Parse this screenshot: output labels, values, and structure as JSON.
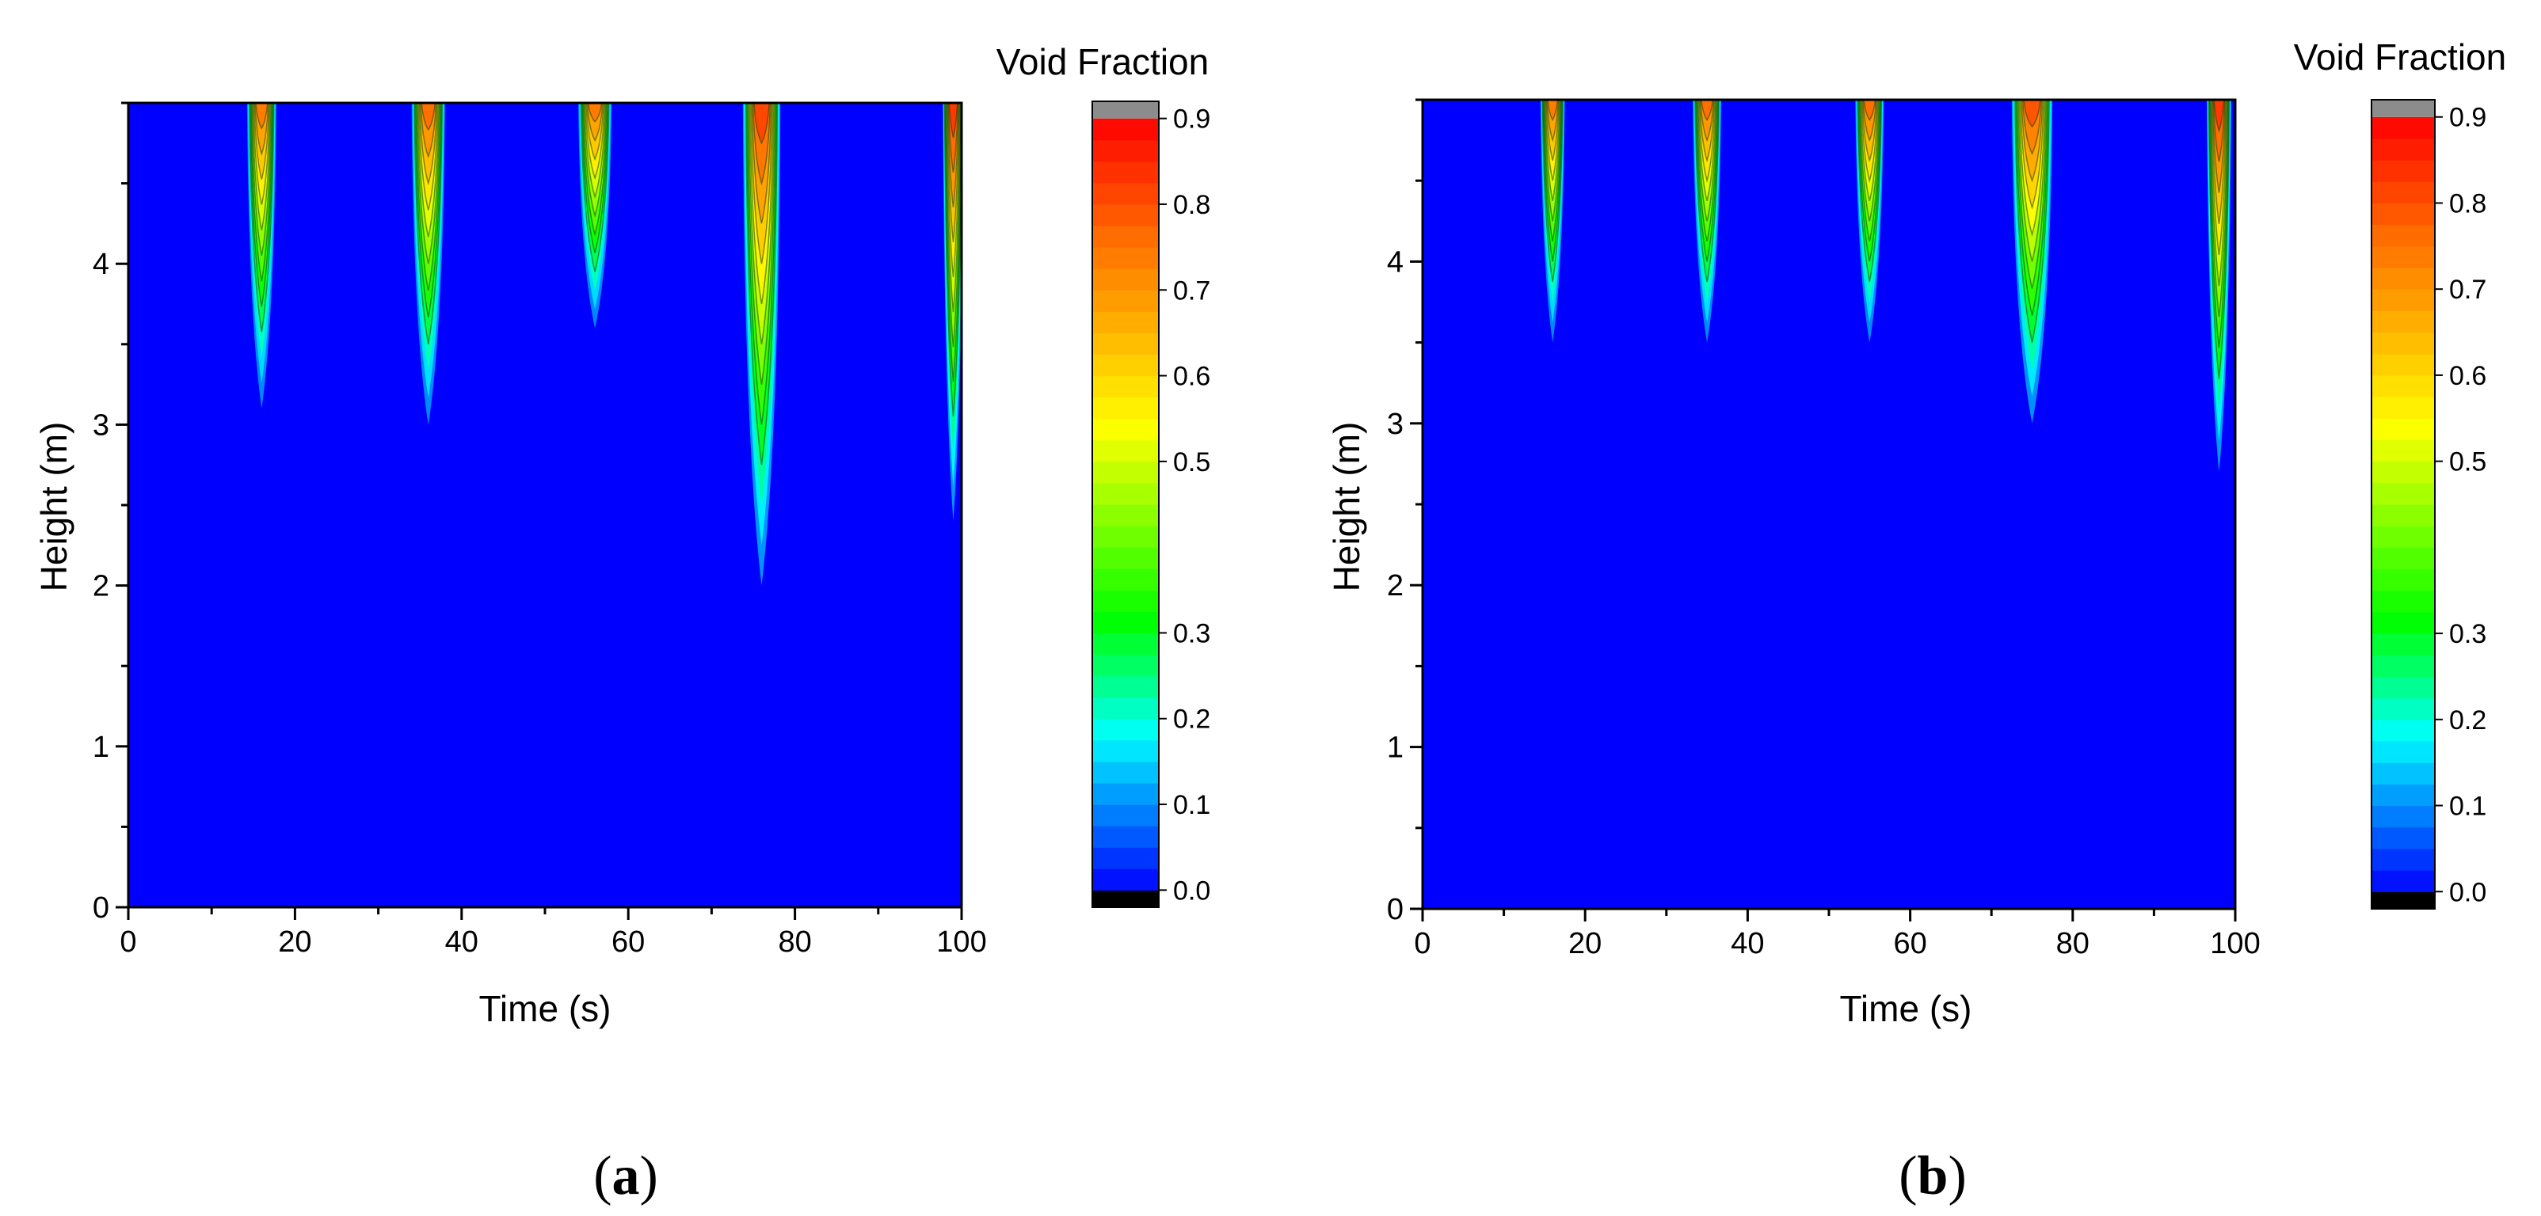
{
  "chart_data": [
    {
      "type": "heatmap",
      "panel_label": {
        "open": "(",
        "letter": "a",
        "close": ")"
      },
      "title": "",
      "xlabel": "Time (s)",
      "ylabel": "Height (m)",
      "xlim": [
        0,
        100
      ],
      "ylim": [
        0,
        5
      ],
      "xticks": [
        0,
        20,
        40,
        60,
        80,
        100
      ],
      "yticks": [
        0,
        1,
        2,
        3,
        4
      ],
      "colorbar": {
        "title": "Void Fraction",
        "range": [
          -0.02,
          0.92
        ],
        "ticks": [
          "0.0",
          "0.1",
          "0.2",
          "0.3",
          "0.5",
          "0.6",
          "0.7",
          "0.8",
          "0.9"
        ],
        "tick_values": [
          0.0,
          0.1,
          0.2,
          0.3,
          0.5,
          0.6,
          0.7,
          0.8,
          0.9
        ]
      },
      "background_value": 0.0,
      "plumes": [
        {
          "time": 16,
          "top_width": 3.5,
          "bottom_height": 3.1,
          "peak_void": 0.82
        },
        {
          "time": 36,
          "top_width": 4.0,
          "bottom_height": 3.0,
          "peak_void": 0.84
        },
        {
          "time": 56,
          "top_width": 4.0,
          "bottom_height": 3.6,
          "peak_void": 0.82
        },
        {
          "time": 76,
          "top_width": 4.5,
          "bottom_height": 2.0,
          "peak_void": 0.9
        },
        {
          "time": 99,
          "top_width": 2.5,
          "bottom_height": 2.4,
          "peak_void": 0.92
        }
      ]
    },
    {
      "type": "heatmap",
      "panel_label": {
        "open": "(",
        "letter": "b",
        "close": ")"
      },
      "title": "",
      "xlabel": "Time (s)",
      "ylabel": "Height (m)",
      "xlim": [
        0,
        100
      ],
      "ylim": [
        0,
        5
      ],
      "xticks": [
        0,
        20,
        40,
        60,
        80,
        100
      ],
      "yticks": [
        0,
        1,
        2,
        3,
        4
      ],
      "colorbar": {
        "title": "Void Fraction",
        "range": [
          -0.02,
          0.92
        ],
        "ticks": [
          "0.0",
          "0.1",
          "0.2",
          "0.3",
          "0.5",
          "0.6",
          "0.7",
          "0.8",
          "0.9"
        ],
        "tick_values": [
          0.0,
          0.1,
          0.2,
          0.3,
          0.5,
          0.6,
          0.7,
          0.8,
          0.9
        ]
      },
      "background_value": 0.0,
      "plumes": [
        {
          "time": 16,
          "top_width": 3.0,
          "bottom_height": 3.5,
          "peak_void": 0.82
        },
        {
          "time": 35,
          "top_width": 3.5,
          "bottom_height": 3.5,
          "peak_void": 0.84
        },
        {
          "time": 55,
          "top_width": 3.5,
          "bottom_height": 3.5,
          "peak_void": 0.84
        },
        {
          "time": 75,
          "top_width": 5.0,
          "bottom_height": 3.0,
          "peak_void": 0.88
        },
        {
          "time": 98,
          "top_width": 3.0,
          "bottom_height": 2.7,
          "peak_void": 0.92
        }
      ]
    }
  ]
}
